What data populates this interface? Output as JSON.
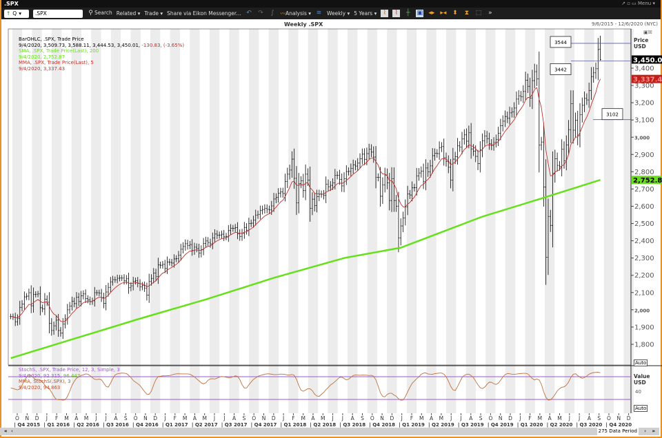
{
  "window": {
    "title": ".SPX",
    "menu_label": "Menu"
  },
  "toolbar": {
    "ric": ".SPX",
    "search": "Search",
    "related": "Related",
    "trade": "Trade",
    "share": "Share via Eikon Messenger...",
    "analysis": "Analysis",
    "interval": "Weekly",
    "range": "5 Years"
  },
  "header": {
    "title": "Weekly .SPX",
    "date_range": "9/6/2015 - 12/6/2020 (NYC)"
  },
  "legend": {
    "bar_title": "BarOHLC, .SPX, Trade Price",
    "bar_values": "9/4/2020, 3,509.73, 3,588.11, 3,444.53, 3,450.01,",
    "bar_change": "-130.83, (-3.65%)",
    "sma_title": "SMA, .SPX, Trade Price(Last),  200",
    "sma_value": "9/4/2020, 2,752.87",
    "mma_title": "MMA, .SPX, Trade Price(Last),  5",
    "mma_value": "9/4/2020, 3,337.43",
    "stoch_title": "StochS, .SPX, Trade Price,  12, 3, Simple, 3",
    "stoch_value_a": "9/4/2020, 92.315,",
    "stoch_value_b": "96.447",
    "stoch_mma_title": "MMA, StochS(.SPX),  3",
    "stoch_mma_value": "9/4/2020, 94.863"
  },
  "price_axis": {
    "title": "Price",
    "unit": "USD",
    "auto": "Auto",
    "last_label": "3,450.0",
    "mma_label": "3,337.4",
    "sma_label": "2,752.8"
  },
  "stoch_axis": {
    "title": "Value",
    "unit": "USD",
    "tick": "40",
    "auto": "Auto"
  },
  "annotations": [
    {
      "label": "3544",
      "value": 3544
    },
    {
      "label": "3442",
      "value": 3442
    },
    {
      "label": "3102",
      "value": 3102
    }
  ],
  "footer": {
    "periods": "275 Data Period"
  },
  "colors": {
    "bars": "#000000",
    "sma": "#66e01a",
    "mma": "#c0302a",
    "stoch": "#c0703a",
    "stoch_levels": "#9b59d0",
    "frame": "#e8912a"
  },
  "chart_data": {
    "type": "ohlc",
    "title": "Weekly .SPX",
    "interval": "weekly",
    "last_date": "2020-09-04",
    "ylim": [
      1700,
      3600
    ],
    "y_ticks": [
      1800,
      1900,
      2000,
      2100,
      2200,
      2300,
      2400,
      2500,
      2600,
      2700,
      2800,
      2900,
      3000,
      3100,
      3200,
      3300,
      3400
    ],
    "last_bar": {
      "open": 3509.73,
      "high": 3588.11,
      "low": 3444.53,
      "close": 3450.01
    },
    "closes": [
      1961,
      1958,
      1931,
      1951,
      2014,
      2033,
      2075,
      2079,
      2099,
      2023,
      2089,
      2090,
      2092,
      2012,
      2005,
      2061,
      2044,
      1922,
      1880,
      1907,
      1940,
      1880,
      1865,
      1918,
      1948,
      2000,
      2022,
      2050,
      2036,
      2073,
      2048,
      2081,
      2092,
      2065,
      2057,
      2047,
      2052,
      2099,
      2099,
      2096,
      2071,
      2037,
      2103,
      2130,
      2162,
      2175,
      2174,
      2183,
      2184,
      2184,
      2169,
      2180,
      2128,
      2139,
      2165,
      2168,
      2153,
      2133,
      2141,
      2126,
      2085,
      2164,
      2182,
      2213,
      2192,
      2260,
      2258,
      2263,
      2239,
      2277,
      2275,
      2271,
      2295,
      2297,
      2316,
      2351,
      2367,
      2383,
      2372,
      2378,
      2344,
      2363,
      2355,
      2329,
      2348,
      2384,
      2399,
      2390,
      2382,
      2416,
      2439,
      2432,
      2433,
      2438,
      2423,
      2425,
      2459,
      2472,
      2472,
      2476,
      2441,
      2425,
      2443,
      2477,
      2461,
      2500,
      2502,
      2519,
      2549,
      2553,
      2575,
      2581,
      2588,
      2582,
      2579,
      2602,
      2642,
      2651,
      2675,
      2683,
      2674,
      2743,
      2786,
      2810,
      2873,
      2762,
      2620,
      2732,
      2747,
      2691,
      2786,
      2752,
      2588,
      2641,
      2604,
      2656,
      2670,
      2670,
      2663,
      2728,
      2713,
      2721,
      2735,
      2779,
      2780,
      2755,
      2718,
      2760,
      2801,
      2802,
      2819,
      2840,
      2833,
      2850,
      2875,
      2902,
      2872,
      2905,
      2930,
      2914,
      2885,
      2767,
      2768,
      2658,
      2723,
      2781,
      2736,
      2633,
      2760,
      2633,
      2600,
      2417,
      2486,
      2532,
      2596,
      2671,
      2665,
      2707,
      2708,
      2776,
      2793,
      2804,
      2743,
      2822,
      2800,
      2834,
      2893,
      2907,
      2905,
      2940,
      2946,
      2881,
      2860,
      2826,
      2752,
      2873,
      2887,
      2950,
      2942,
      2990,
      3014,
      2977,
      3026,
      2932,
      2919,
      2889,
      2847,
      2926,
      2979,
      3007,
      2992,
      2962,
      2952,
      2970,
      2986,
      3023,
      3067,
      3093,
      3120,
      3110,
      3141,
      3146,
      3169,
      3221,
      3240,
      3235,
      3265,
      3330,
      3295,
      3226,
      3328,
      3380,
      3338,
      2954,
      2972,
      2711,
      2305,
      2541,
      2489,
      2790,
      2875,
      2837,
      2831,
      2930,
      2864,
      2955,
      3044,
      3194,
      3041,
      3098,
      3009,
      3130,
      3185,
      3225,
      3216,
      3271,
      3351,
      3373,
      3397,
      3508,
      3450.01
    ],
    "sma200": [
      [
        "2015-09-11",
        1720
      ],
      [
        "2016-10-07",
        1945
      ],
      [
        "2017-05-05",
        2060
      ],
      [
        "2017-12-01",
        2185
      ],
      [
        "2018-07-06",
        2300
      ],
      [
        "2018-12-28",
        2360
      ],
      [
        "2019-09-06",
        2540
      ],
      [
        "2020-03-06",
        2645
      ],
      [
        "2020-09-04",
        2752.87
      ]
    ],
    "stoch_levels": [
      80,
      20
    ],
    "months": [
      "O",
      "N",
      "D",
      "J",
      "F",
      "M",
      "A",
      "M",
      "J",
      "J",
      "A",
      "S",
      "O",
      "N",
      "D",
      "J",
      "F",
      "M",
      "A",
      "M",
      "J",
      "J",
      "A",
      "S",
      "O",
      "N",
      "D",
      "J",
      "F",
      "M",
      "A",
      "M",
      "J",
      "J",
      "A",
      "S",
      "O",
      "N",
      "D",
      "J",
      "F",
      "M",
      "A",
      "M",
      "J",
      "J",
      "A",
      "S",
      "O",
      "N",
      "D",
      "J",
      "F",
      "M",
      "A",
      "M",
      "J",
      "J",
      "A",
      "S",
      "O",
      "N",
      "D"
    ],
    "quarters": [
      "Q4 2015",
      "Q1 2016",
      "Q2 2016",
      "Q3 2016",
      "Q4 2016",
      "Q1 2017",
      "Q2 2017",
      "Q3 2017",
      "Q4 2017",
      "Q1 2018",
      "Q2 2018",
      "Q3 2018",
      "Q4 2018",
      "Q1 2019",
      "Q2 2019",
      "Q3 2019",
      "Q4 2019",
      "Q1 2020",
      "Q2 2020",
      "Q3 2020",
      "Q4 2020"
    ]
  }
}
